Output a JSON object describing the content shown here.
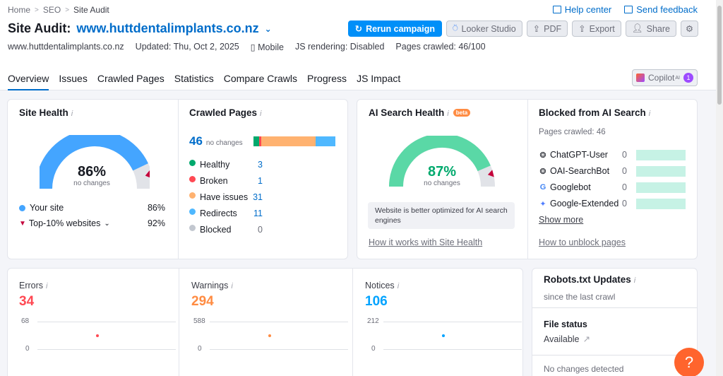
{
  "breadcrumb": [
    "Home",
    "SEO",
    "Site Audit"
  ],
  "top_links": {
    "help": "Help center",
    "feedback": "Send feedback"
  },
  "title": {
    "prefix": "Site Audit:",
    "domain": "www.huttdentalimplants.co.nz"
  },
  "actions": {
    "rerun": "Rerun campaign",
    "looker": "Looker Studio",
    "pdf": "PDF",
    "export": "Export",
    "share": "Share"
  },
  "meta": {
    "domain": "www.huttdentalimplants.co.nz",
    "updated": "Updated: Thu, Oct 2, 2025",
    "device": "Mobile",
    "js": "JS rendering: Disabled",
    "pages": "Pages crawled: 46/100"
  },
  "tabs": [
    "Overview",
    "Issues",
    "Crawled Pages",
    "Statistics",
    "Compare Crawls",
    "Progress",
    "JS Impact"
  ],
  "copilot": {
    "label": "Copilot",
    "sup": "AI",
    "count": "1"
  },
  "site_health": {
    "title": "Site Health",
    "value": "86%",
    "value_num": 86,
    "sub": "no changes",
    "your_site_label": "Your site",
    "your_site_value": "86%",
    "top10_label": "Top-10% websites",
    "top10_value": "92%",
    "color": "#44a5ff"
  },
  "crawled_pages": {
    "title": "Crawled Pages",
    "count": "46",
    "sub": "no changes",
    "rows": [
      {
        "label": "Healthy",
        "value": "3",
        "color": "#00a96d"
      },
      {
        "label": "Broken",
        "value": "1",
        "color": "#ff4953"
      },
      {
        "label": "Have issues",
        "value": "31",
        "color": "#ffb270"
      },
      {
        "label": "Redirects",
        "value": "11",
        "color": "#4fb8ff"
      },
      {
        "label": "Blocked",
        "value": "0",
        "color": "#c2c7cf"
      }
    ]
  },
  "ai_health": {
    "title": "AI Search Health",
    "badge": "beta",
    "value": "87%",
    "value_num": 87,
    "sub": "no changes",
    "note": "Website is better optimized for AI search engines",
    "link": "How it works with Site Health",
    "color": "#5ad8a6"
  },
  "blocked_ai": {
    "title": "Blocked from AI Search",
    "sub": "Pages crawled: 46",
    "rows": [
      {
        "label": "ChatGPT-User",
        "value": "0",
        "icon": "openai-icon"
      },
      {
        "label": "OAI-SearchBot",
        "value": "0",
        "icon": "openai-icon"
      },
      {
        "label": "Googlebot",
        "value": "0",
        "icon": "google-icon"
      },
      {
        "label": "Google-Extended",
        "value": "0",
        "icon": "gemini-icon"
      }
    ],
    "more": "Show more",
    "link": "How to unblock pages"
  },
  "errors": {
    "label": "Errors",
    "value": "34",
    "max": "68",
    "min": "0",
    "color": "#ff4953"
  },
  "warnings": {
    "label": "Warnings",
    "value": "294",
    "max": "588",
    "min": "0",
    "color": "#ff8c43"
  },
  "notices": {
    "label": "Notices",
    "value": "106",
    "max": "212",
    "min": "0",
    "color": "#00a3ff"
  },
  "robots": {
    "title": "Robots.txt Updates",
    "sub": "since the last crawl",
    "file_status_label": "File status",
    "file_status_value": "Available",
    "changes": "No changes detected"
  }
}
